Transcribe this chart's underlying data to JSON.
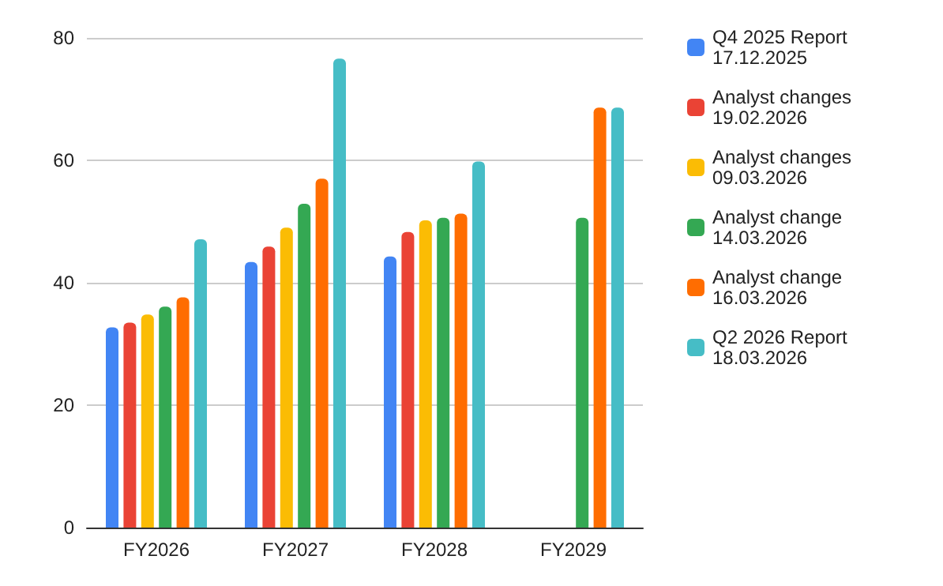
{
  "chart_data": {
    "type": "bar",
    "categories": [
      "FY2026",
      "FY2027",
      "FY2028",
      "FY2029"
    ],
    "series": [
      {
        "name": "Q4 2025 Report\n17.12.2025",
        "color": "#4285f4",
        "values": [
          32.7,
          43.4,
          44.3,
          null
        ]
      },
      {
        "name": "Analyst changes\n19.02.2026",
        "color": "#ea4335",
        "values": [
          33.5,
          45.9,
          48.3,
          null
        ]
      },
      {
        "name": "Analyst changes\n09.03.2026",
        "color": "#fbbc04",
        "values": [
          34.8,
          49.0,
          50.2,
          null
        ]
      },
      {
        "name": "Analyst change\n14.03.2026",
        "color": "#34a853",
        "values": [
          36.1,
          52.9,
          50.6,
          50.6
        ]
      },
      {
        "name": "Analyst change\n16.03.2026",
        "color": "#ff6d01",
        "values": [
          37.6,
          57.0,
          51.3,
          68.6
        ]
      },
      {
        "name": "Q2 2026 Report\n18.03.2026",
        "color": "#46bdc6",
        "values": [
          47.1,
          76.6,
          59.8,
          68.6
        ]
      }
    ],
    "ylim": [
      0,
      80
    ],
    "yticks": [
      0,
      20,
      40,
      60,
      80
    ],
    "grid": "y",
    "legend": "right"
  }
}
